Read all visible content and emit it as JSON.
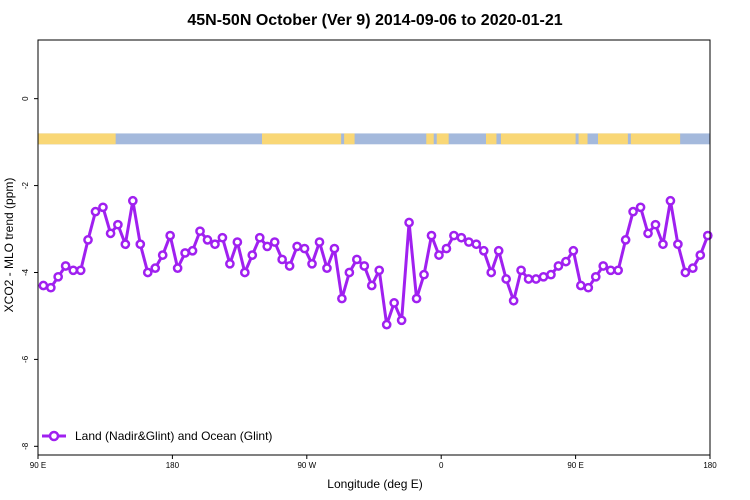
{
  "chart_data": {
    "type": "line",
    "title": "45N-50N October (Ver 9)   2014-09-06 to 2020-01-21",
    "xlabel": "Longitude (deg E)",
    "ylabel": "XCO2 - MLO trend (ppm)",
    "xlim": [
      90,
      540
    ],
    "ylim": [
      -8.2,
      1.35
    ],
    "x_ticks": [
      {
        "value": 90,
        "label": "90 E"
      },
      {
        "value": 180,
        "label": "180"
      },
      {
        "value": 270,
        "label": "90 W"
      },
      {
        "value": 360,
        "label": "0"
      },
      {
        "value": 450,
        "label": "90 E"
      },
      {
        "value": 540,
        "label": "180"
      }
    ],
    "y_ticks": [
      {
        "value": 0,
        "label": "0"
      },
      {
        "value": -2,
        "label": "-2"
      },
      {
        "value": -4,
        "label": "-4"
      },
      {
        "value": -6,
        "label": "-6"
      },
      {
        "value": -8,
        "label": "-8"
      }
    ],
    "land_ocean_strip": {
      "y_range": [
        -1.05,
        -0.8
      ],
      "land_color": "#F9D776",
      "ocean_color": "#A4B9DC",
      "land_segments": [
        [
          90,
          142
        ],
        [
          240,
          293
        ],
        [
          295,
          302
        ],
        [
          350,
          355
        ],
        [
          357,
          365
        ],
        [
          390,
          397
        ],
        [
          400,
          450
        ],
        [
          452,
          458
        ],
        [
          465,
          485
        ],
        [
          487,
          520
        ]
      ]
    },
    "series": [
      {
        "name": "Land (Nadir&Glint) and Ocean (Glint)",
        "color": "#A020F0",
        "x": [
          93.6,
          98.6,
          103.5,
          108.5,
          113.6,
          118.6,
          123.5,
          128.5,
          133.5,
          138.6,
          143.5,
          148.5,
          153.5,
          158.5,
          163.5,
          168.5,
          173.5,
          178.5,
          183.5,
          188.5,
          193.5,
          198.5,
          203.5,
          208.5,
          213.5,
          218.5,
          223.5,
          228.5,
          233.5,
          238.5,
          243.5,
          248.5,
          253.5,
          258.5,
          263.5,
          268.5,
          273.5,
          278.5,
          283.5,
          288.5,
          293.5,
          298.5,
          303.5,
          308.5,
          313.5,
          318.5,
          323.5,
          328.5,
          333.5,
          338.5,
          343.5,
          348.5,
          353.5,
          358.5,
          363.5,
          368.5,
          373.5,
          378.5,
          383.5,
          388.5,
          393.5,
          398.5,
          403.5,
          408.5,
          413.5,
          418.5,
          423.5,
          428.5,
          433.5,
          438.5,
          443.5,
          448.5,
          453.5,
          458.5,
          463.5,
          468.5,
          473.5,
          478.5,
          483.5,
          488.5,
          493.5,
          498.5,
          503.5,
          508.5,
          513.5,
          518.5,
          523.5,
          528.5,
          533.5,
          538.5
        ],
        "values": [
          -4.3,
          -4.35,
          -4.1,
          -3.85,
          -3.95,
          -3.95,
          -3.25,
          -2.6,
          -2.5,
          -3.1,
          -2.9,
          -3.35,
          -2.35,
          -3.35,
          -4.0,
          -3.9,
          -3.6,
          -3.15,
          -3.9,
          -3.55,
          -3.5,
          -3.05,
          -3.25,
          -3.35,
          -3.2,
          -3.8,
          -3.3,
          -4.0,
          -3.6,
          -3.2,
          -3.4,
          -3.3,
          -3.7,
          -3.85,
          -3.4,
          -3.45,
          -3.8,
          -3.3,
          -3.9,
          -3.45,
          -4.6,
          -4.0,
          -3.7,
          -3.85,
          -4.3,
          -3.95,
          -5.2,
          -4.7,
          -5.1,
          -2.85,
          -4.6,
          -4.05,
          -3.15,
          -3.6,
          -3.45,
          -3.15,
          -3.2,
          -3.3,
          -3.35,
          -3.5,
          -4.0,
          -3.5,
          -4.15,
          -4.65,
          -3.95,
          -4.15,
          -4.15,
          -4.1,
          -4.05,
          -3.85,
          -3.75,
          -3.5,
          -4.3,
          -4.35,
          -4.1,
          -3.85,
          -3.95,
          -3.95,
          -3.25,
          -2.6,
          -2.5,
          -3.1,
          -2.9,
          -3.35,
          -2.35,
          -3.35,
          -4.0,
          -3.9,
          -3.6,
          -3.15
        ]
      }
    ],
    "legend": {
      "position": "bottom-left"
    },
    "grid": false
  }
}
